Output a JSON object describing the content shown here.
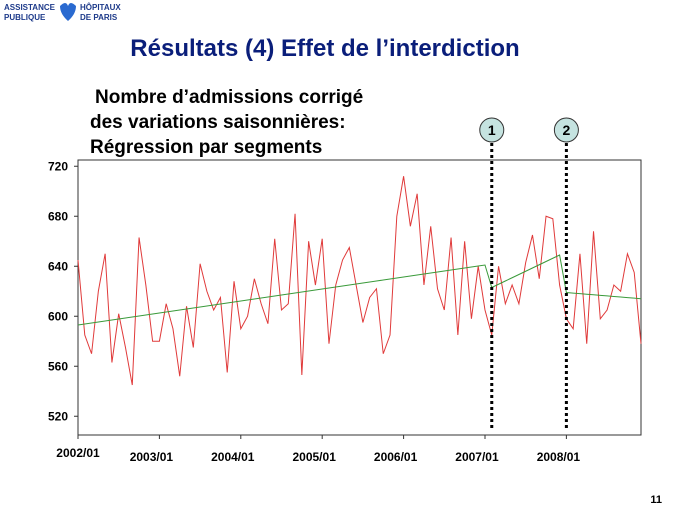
{
  "header": {
    "logo": [
      "ASSISTANCE",
      "PUBLIQUE",
      "HÔPITAUX",
      "DE PARIS"
    ],
    "title": "Résultats (4) Effet de l’interdiction"
  },
  "chart_data": {
    "type": "line",
    "subtitle": [
      "Nombre d’admissions corrigé",
      "des variations saisonnières:",
      "Régression par segments"
    ],
    "x": [
      "2002/01",
      "2002/02",
      "2002/03",
      "2002/04",
      "2002/05",
      "2002/06",
      "2002/07",
      "2002/08",
      "2002/09",
      "2002/10",
      "2002/11",
      "2002/12",
      "2003/01",
      "2003/02",
      "2003/03",
      "2003/04",
      "2003/05",
      "2003/06",
      "2003/07",
      "2003/08",
      "2003/09",
      "2003/10",
      "2003/11",
      "2003/12",
      "2004/01",
      "2004/02",
      "2004/03",
      "2004/04",
      "2004/05",
      "2004/06",
      "2004/07",
      "2004/08",
      "2004/09",
      "2004/10",
      "2004/11",
      "2004/12",
      "2005/01",
      "2005/02",
      "2005/03",
      "2005/04",
      "2005/05",
      "2005/06",
      "2005/07",
      "2005/08",
      "2005/09",
      "2005/10",
      "2005/11",
      "2005/12",
      "2006/01",
      "2006/02",
      "2006/03",
      "2006/04",
      "2006/05",
      "2006/06",
      "2006/07",
      "2006/08",
      "2006/09",
      "2006/10",
      "2006/11",
      "2006/12",
      "2007/01",
      "2007/02",
      "2007/03",
      "2007/04",
      "2007/05",
      "2007/06",
      "2007/07",
      "2007/08",
      "2007/09",
      "2007/10",
      "2007/11",
      "2007/12",
      "2008/01",
      "2008/02",
      "2008/03",
      "2008/04",
      "2008/05",
      "2008/06",
      "2008/07",
      "2008/08",
      "2008/09",
      "2008/10",
      "2008/11",
      "2008/12"
    ],
    "series": [
      {
        "color": "#e03a3a",
        "values": [
          645,
          585,
          570,
          620,
          650,
          563,
          602,
          575,
          545,
          663,
          625,
          580,
          580,
          610,
          590,
          552,
          608,
          575,
          642,
          620,
          605,
          615,
          555,
          628,
          590,
          600,
          630,
          610,
          594,
          662,
          605,
          610,
          682,
          553,
          660,
          625,
          662,
          578,
          625,
          645,
          655,
          625,
          595,
          615,
          622,
          570,
          585,
          680,
          712,
          672,
          698,
          625,
          672,
          622,
          605,
          663,
          585,
          660,
          598,
          640,
          605,
          585,
          640,
          610,
          625,
          610,
          643,
          665,
          630,
          680,
          678,
          625,
          598,
          590,
          650,
          578,
          668,
          598,
          605,
          625,
          620,
          650,
          635,
          578
        ]
      },
      {
        "color": "#3a9a3a",
        "values": [
          593,
          593.8,
          594.6,
          595.4,
          596.2,
          597,
          597.8,
          598.6,
          599.4,
          600.2,
          601,
          601.8,
          602.6,
          603.4,
          604.2,
          605,
          605.8,
          606.6,
          607.4,
          608.2,
          609,
          609.8,
          610.6,
          611.4,
          612.2,
          613,
          613.8,
          614.6,
          615.4,
          616.2,
          617,
          617.8,
          618.6,
          619.4,
          620.2,
          621,
          621.8,
          622.6,
          623.4,
          624.2,
          625,
          625.8,
          626.6,
          627.4,
          628.2,
          629,
          629.8,
          630.6,
          631.4,
          632.2,
          633,
          633.8,
          634.6,
          635.4,
          636.2,
          637,
          637.8,
          638.6,
          639.4,
          640.2,
          641,
          623,
          625.6,
          628.2,
          630.8,
          633.4,
          636,
          638.6,
          641.2,
          643.8,
          646.4,
          649,
          619,
          618.5,
          618.1,
          617.6,
          617.2,
          616.7,
          616.3,
          615.8,
          615.4,
          614.9,
          614.5,
          614
        ]
      }
    ],
    "ylim": [
      505,
      725
    ],
    "yticks": [
      520,
      560,
      600,
      640,
      680,
      720
    ],
    "xticks": [
      "2002/01",
      "2003/01",
      "2004/01",
      "2005/01",
      "2006/01",
      "2007/01",
      "2008/01"
    ],
    "annotations": [
      {
        "label": "1",
        "x": "2007/02"
      },
      {
        "label": "2",
        "x": "2008/01"
      }
    ]
  },
  "slide_number": "11"
}
